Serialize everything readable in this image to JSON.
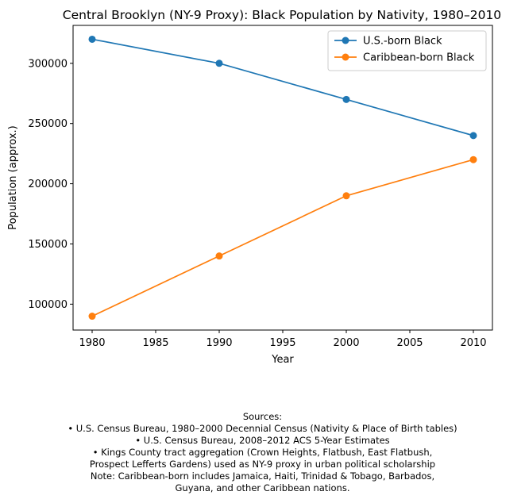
{
  "chart_data": {
    "type": "line",
    "title": "Central Brooklyn (NY-9 Proxy): Black Population by Nativity, 1980–2010",
    "xlabel": "Year",
    "ylabel": "Population (approx.)",
    "x": [
      1980,
      1990,
      2000,
      2010
    ],
    "xlim": [
      1978.5,
      2011.5
    ],
    "ylim": [
      78500,
      331500
    ],
    "xticks": [
      1980,
      1985,
      1990,
      1995,
      2000,
      2005,
      2010
    ],
    "yticks": [
      100000,
      150000,
      200000,
      250000,
      300000
    ],
    "grid": false,
    "legend_position": "top-right",
    "series": [
      {
        "name": "U.S.-born Black",
        "color": "#1f77b4",
        "values": [
          320000,
          300000,
          270000,
          240000
        ]
      },
      {
        "name": "Caribbean-born Black",
        "color": "#ff7f0e",
        "values": [
          90000,
          140000,
          190000,
          220000
        ]
      }
    ]
  },
  "sources": {
    "heading": "Sources:",
    "lines": [
      "• U.S. Census Bureau, 1980–2000 Decennial Census (Nativity & Place of Birth tables)",
      "• U.S. Census Bureau, 2008–2012 ACS 5-Year Estimates",
      "• Kings County tract aggregation (Crown Heights, Flatbush, East Flatbush,",
      "Prospect Lefferts Gardens) used as NY-9 proxy in urban political scholarship",
      "Note: Caribbean-born includes Jamaica, Haiti, Trinidad & Tobago, Barbados,",
      "Guyana, and other Caribbean nations."
    ]
  }
}
